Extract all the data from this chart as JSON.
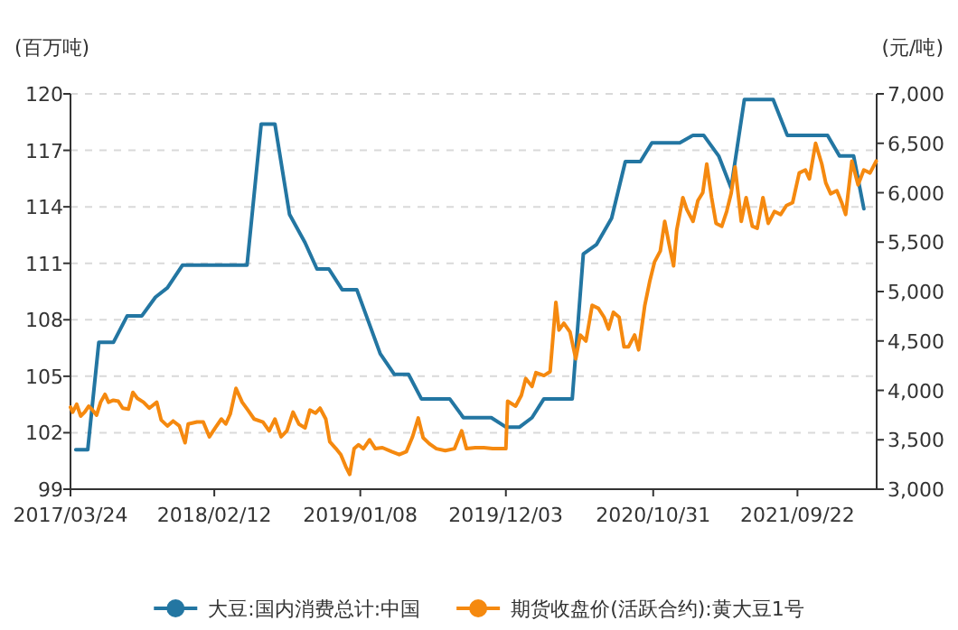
{
  "chart_data": {
    "type": "line",
    "ylabel": "(百万吨)",
    "y2label": "(元/吨)",
    "legend": "bottom",
    "grid": "y",
    "xlim": [
      "2017-03-24",
      "2022-03-20"
    ],
    "xticks": [
      {
        "value": "2017-03-24",
        "label": "2017/03/24"
      },
      {
        "value": "2018-02-12",
        "label": "2018/02/12"
      },
      {
        "value": "2019-01-08",
        "label": "2019/01/08"
      },
      {
        "value": "2019-12-03",
        "label": "2019/12/03"
      },
      {
        "value": "2020-10-31",
        "label": "2020/10/31"
      },
      {
        "value": "2021-09-22",
        "label": "2021/09/22"
      }
    ],
    "ylim": [
      99,
      120
    ],
    "yticks": [
      99,
      102,
      105,
      108,
      111,
      114,
      117,
      120
    ],
    "y2lim": [
      3000,
      7000
    ],
    "y2ticks": [
      {
        "value": 3000,
        "label": "3,000"
      },
      {
        "value": 3500,
        "label": "3,500"
      },
      {
        "value": 4000,
        "label": "4,000"
      },
      {
        "value": 4500,
        "label": "4,500"
      },
      {
        "value": 5000,
        "label": "5,000"
      },
      {
        "value": 5500,
        "label": "5,500"
      },
      {
        "value": 6000,
        "label": "6,000"
      },
      {
        "value": 6500,
        "label": "6,500"
      },
      {
        "value": 7000,
        "label": "7,000"
      }
    ],
    "series": [
      {
        "name": "大豆:国内消费总计:中国",
        "color": "#2376a2",
        "x": [
          "2017-04-05",
          "2017-05-02",
          "2017-05-27",
          "2017-06-29",
          "2017-07-30",
          "2017-09-01",
          "2017-10-02",
          "2017-10-29",
          "2017-12-02",
          "2018-04-27",
          "2018-05-29",
          "2018-06-29",
          "2018-08-01",
          "2018-09-05",
          "2018-10-02",
          "2018-10-29",
          "2018-11-28",
          "2018-12-31",
          "2019-02-22",
          "2019-03-26",
          "2019-04-27",
          "2019-05-26",
          "2019-07-29",
          "2019-08-29",
          "2019-10-31",
          "2019-12-03",
          "2020-01-03",
          "2020-01-31",
          "2020-02-27",
          "2020-05-01",
          "2020-05-26",
          "2020-06-25",
          "2020-07-29",
          "2020-08-29",
          "2020-10-02",
          "2020-10-28",
          "2020-12-30",
          "2021-01-29",
          "2021-02-22",
          "2021-03-28",
          "2021-04-25",
          "2021-05-25",
          "2021-07-29",
          "2021-08-30",
          "2021-11-29",
          "2021-12-26",
          "2022-01-27",
          "2022-02-19"
        ],
        "values": [
          101.1,
          101.1,
          106.8,
          106.8,
          108.2,
          108.2,
          109.2,
          109.7,
          110.9,
          110.9,
          118.4,
          118.4,
          113.6,
          112.1,
          110.7,
          110.7,
          109.6,
          109.6,
          106.2,
          105.1,
          105.1,
          103.8,
          103.8,
          102.8,
          102.8,
          102.3,
          102.3,
          102.8,
          103.8,
          103.8,
          111.5,
          112.0,
          113.4,
          116.4,
          116.4,
          117.4,
          117.4,
          117.8,
          117.8,
          116.7,
          115.0,
          119.7,
          119.7,
          117.8,
          117.8,
          116.7,
          116.7,
          113.9
        ]
      },
      {
        "name": "期货收盘价(活跃合约):黄大豆1号",
        "color": "#f5890f",
        "axis": "y2",
        "x": [
          "2017-03-24",
          "2017-03-29",
          "2017-04-07",
          "2017-04-16",
          "2017-04-25",
          "2017-05-04",
          "2017-05-13",
          "2017-05-22",
          "2017-05-31",
          "2017-06-10",
          "2017-06-18",
          "2017-06-29",
          "2017-07-10",
          "2017-07-20",
          "2017-08-02",
          "2017-08-12",
          "2017-08-22",
          "2017-09-05",
          "2017-09-18",
          "2017-10-05",
          "2017-10-15",
          "2017-10-29",
          "2017-11-11",
          "2017-11-25",
          "2017-12-08",
          "2017-12-15",
          "2018-01-04",
          "2018-01-18",
          "2018-02-01",
          "2018-02-14",
          "2018-02-28",
          "2018-03-10",
          "2018-03-20",
          "2018-04-02",
          "2018-04-16",
          "2018-04-29",
          "2018-05-13",
          "2018-06-02",
          "2018-06-16",
          "2018-06-29",
          "2018-07-13",
          "2018-07-26",
          "2018-08-09",
          "2018-08-22",
          "2018-09-05",
          "2018-09-16",
          "2018-09-29",
          "2018-10-09",
          "2018-10-22",
          "2018-10-31",
          "2018-11-14",
          "2018-11-25",
          "2018-12-06",
          "2018-12-15",
          "2018-12-25",
          "2019-01-04",
          "2019-01-15",
          "2019-01-29",
          "2019-02-11",
          "2019-02-27",
          "2019-03-20",
          "2019-04-06",
          "2019-04-22",
          "2019-05-06",
          "2019-05-19",
          "2019-05-30",
          "2019-06-13",
          "2019-06-29",
          "2019-07-19",
          "2019-08-09",
          "2019-08-25",
          "2019-09-05",
          "2019-09-25",
          "2019-10-14",
          "2019-11-03",
          "2019-11-23",
          "2019-12-03",
          "2019-12-07",
          "2019-12-25",
          "2020-01-07",
          "2020-01-17",
          "2020-01-31",
          "2020-02-09",
          "2020-02-27",
          "2020-03-12",
          "2020-03-25",
          "2020-04-01",
          "2020-04-12",
          "2020-04-26",
          "2020-05-09",
          "2020-05-19",
          "2020-06-01",
          "2020-06-15",
          "2020-06-29",
          "2020-07-12",
          "2020-07-22",
          "2020-08-02",
          "2020-08-15",
          "2020-08-26",
          "2020-09-05",
          "2020-09-19",
          "2020-09-28",
          "2020-10-12",
          "2020-10-23",
          "2020-11-03",
          "2020-11-16",
          "2020-11-26",
          "2020-12-05",
          "2020-12-16",
          "2020-12-23",
          "2021-01-06",
          "2021-01-15",
          "2021-01-29",
          "2021-02-09",
          "2021-02-20",
          "2021-03-01",
          "2021-03-12",
          "2021-03-22",
          "2021-04-04",
          "2021-04-15",
          "2021-04-25",
          "2021-05-04",
          "2021-05-18",
          "2021-05-29",
          "2021-06-12",
          "2021-06-23",
          "2021-07-06",
          "2021-07-18",
          "2021-08-01",
          "2021-08-15",
          "2021-08-28",
          "2021-09-11",
          "2021-09-26",
          "2021-10-10",
          "2021-10-19",
          "2021-11-02",
          "2021-11-16",
          "2021-11-25",
          "2021-12-06",
          "2021-12-20",
          "2021-12-31",
          "2022-01-09",
          "2022-01-23",
          "2022-02-06",
          "2022-02-19",
          "2022-03-05",
          "2022-03-19"
        ],
        "values": [
          3830,
          3780,
          3860,
          3740,
          3780,
          3840,
          3800,
          3750,
          3880,
          3960,
          3880,
          3900,
          3890,
          3820,
          3810,
          3980,
          3920,
          3880,
          3820,
          3880,
          3700,
          3640,
          3690,
          3640,
          3470,
          3660,
          3680,
          3680,
          3530,
          3620,
          3710,
          3660,
          3760,
          4020,
          3880,
          3800,
          3710,
          3680,
          3590,
          3710,
          3530,
          3590,
          3780,
          3660,
          3620,
          3800,
          3770,
          3820,
          3710,
          3480,
          3410,
          3350,
          3230,
          3150,
          3410,
          3450,
          3410,
          3500,
          3410,
          3420,
          3380,
          3350,
          3380,
          3530,
          3720,
          3520,
          3460,
          3410,
          3390,
          3410,
          3590,
          3410,
          3420,
          3420,
          3410,
          3410,
          3410,
          3890,
          3840,
          3950,
          4120,
          4040,
          4180,
          4150,
          4190,
          4890,
          4610,
          4680,
          4590,
          4320,
          4560,
          4500,
          4860,
          4830,
          4740,
          4620,
          4790,
          4740,
          4440,
          4440,
          4560,
          4410,
          4860,
          5100,
          5300,
          5410,
          5710,
          5500,
          5260,
          5620,
          5950,
          5830,
          5710,
          5920,
          6000,
          6290,
          5950,
          5690,
          5660,
          5810,
          5990,
          6260,
          5710,
          5950,
          5660,
          5640,
          5950,
          5690,
          5810,
          5780,
          5870,
          5900,
          6200,
          6230,
          6140,
          6500,
          6290,
          6100,
          5990,
          6020,
          5900,
          5780,
          6320,
          6080,
          6230,
          6200,
          6320
        ]
      }
    ]
  }
}
